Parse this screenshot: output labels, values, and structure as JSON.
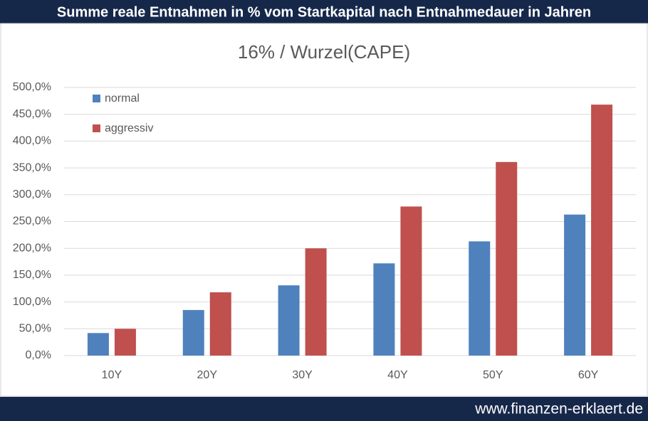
{
  "header": {
    "title": "Summe reale Entnahmen in % vom Startkapital nach Entnahmedauer in Jahren"
  },
  "footer": {
    "text": "www.finanzen-erklaert.de"
  },
  "chart_data": {
    "type": "bar",
    "title": "16% / Wurzel(CAPE)",
    "categories": [
      "10Y",
      "20Y",
      "30Y",
      "40Y",
      "50Y",
      "60Y"
    ],
    "series": [
      {
        "name": "normal",
        "color": "#4f81bd",
        "values": [
          42,
          85,
          131,
          172,
          213,
          263
        ]
      },
      {
        "name": "aggressiv",
        "color": "#c0504d",
        "values": [
          50,
          118,
          200,
          278,
          361,
          468
        ]
      }
    ],
    "ylim": [
      0,
      500
    ],
    "yticks": [
      {
        "value": 0,
        "label": "0,0%"
      },
      {
        "value": 50,
        "label": "50,0%"
      },
      {
        "value": 100,
        "label": "100,0%"
      },
      {
        "value": 150,
        "label": "150,0%"
      },
      {
        "value": 200,
        "label": "200,0%"
      },
      {
        "value": 250,
        "label": "250,0%"
      },
      {
        "value": 300,
        "label": "300,0%"
      },
      {
        "value": 350,
        "label": "350,0%"
      },
      {
        "value": 400,
        "label": "400,0%"
      },
      {
        "value": 450,
        "label": "450,0%"
      },
      {
        "value": 500,
        "label": "500,0%"
      }
    ],
    "grid": true,
    "legend": "top-left"
  }
}
